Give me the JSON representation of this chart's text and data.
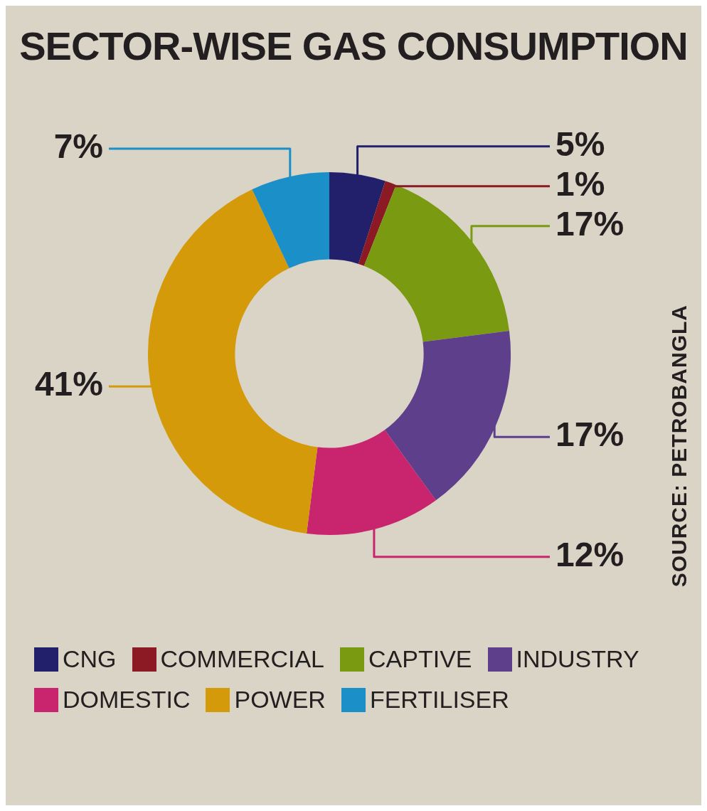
{
  "chart_data": {
    "type": "donut",
    "title": "SECTOR-WISE GAS CONSUMPTION",
    "categories": [
      "CNG",
      "COMMERCIAL",
      "CAPTIVE",
      "INDUSTRY",
      "DOMESTIC",
      "POWER",
      "FERTILISER"
    ],
    "values": [
      5,
      1,
      17,
      17,
      12,
      41,
      7
    ],
    "colors": [
      "#22206b",
      "#8b1a24",
      "#7a9a12",
      "#5e3f8c",
      "#c8256e",
      "#d49a0a",
      "#1a8fc8"
    ],
    "value_labels": [
      "5%",
      "1%",
      "17%",
      "17%",
      "12%",
      "41%",
      "7%"
    ],
    "legend": "bottom",
    "annotations": [
      "SOURCE: PETROBANGLA"
    ]
  }
}
